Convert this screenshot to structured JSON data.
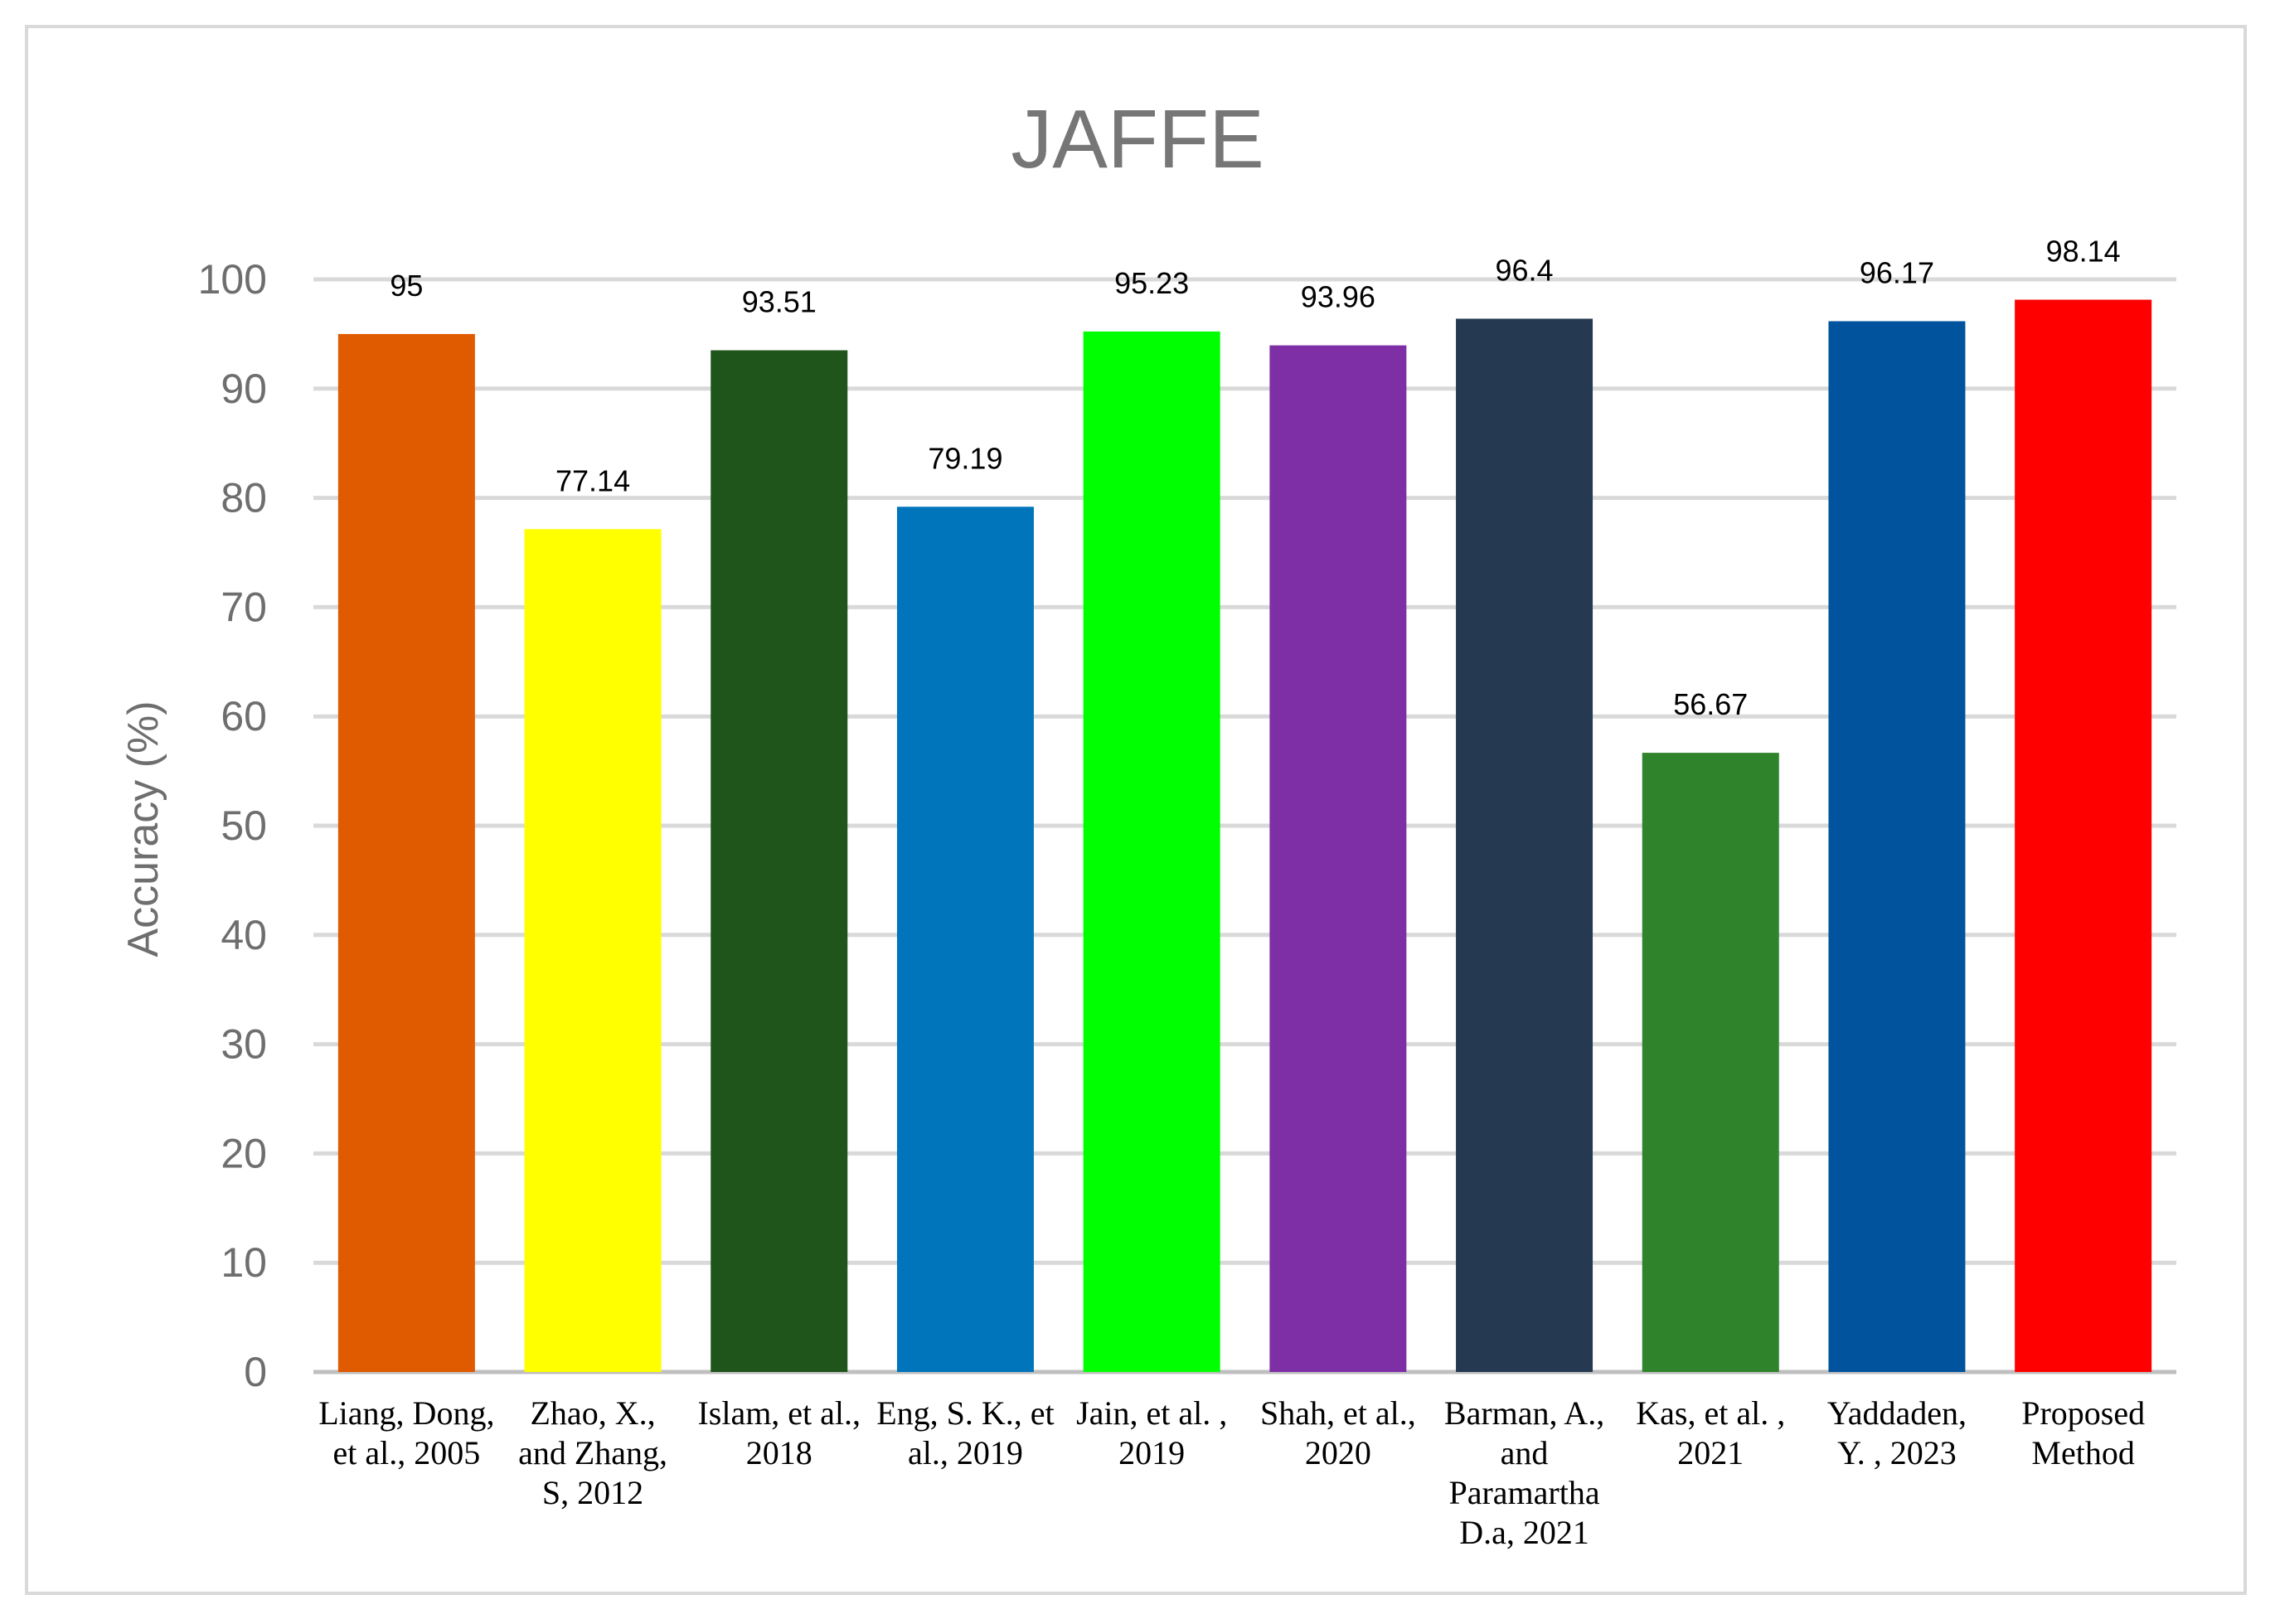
{
  "chart_data": {
    "type": "bar",
    "title": "JAFFE",
    "xlabel": "",
    "ylabel": "Accuracy (%)",
    "ylim": [
      0,
      100
    ],
    "yticks": [
      0,
      10,
      20,
      30,
      40,
      50,
      60,
      70,
      80,
      90,
      100
    ],
    "grid": true,
    "legend": "none",
    "categories": [
      [
        "Liang, Dong,",
        "et al., 2005"
      ],
      [
        "Zhao, X.,",
        "and Zhang,",
        "S, 2012"
      ],
      [
        "Islam, et al.,",
        "2018"
      ],
      [
        "Eng, S. K., et",
        "al., 2019"
      ],
      [
        "Jain, et al. ,",
        "2019"
      ],
      [
        "Shah, et al.,",
        "2020"
      ],
      [
        "Barman, A.,",
        "and",
        "Paramartha",
        "D.a, 2021"
      ],
      [
        "Kas, et al. ,",
        "2021"
      ],
      [
        "Yaddaden,",
        "Y. , 2023"
      ],
      [
        "Proposed",
        "Method"
      ]
    ],
    "values": [
      95,
      77.14,
      93.51,
      79.19,
      95.23,
      93.96,
      96.4,
      56.67,
      96.17,
      98.14
    ],
    "value_labels": [
      "95",
      "77.14",
      "93.51",
      "79.19",
      "95.23",
      "93.96",
      "96.4",
      "56.67",
      "96.17",
      "98.14"
    ],
    "colors": [
      "#e05a00",
      "#ffff00",
      "#1f541a",
      "#0075bc",
      "#00ff00",
      "#7f2fa6",
      "#253a50",
      "#2f842b",
      "#00539c",
      "#ff0000"
    ]
  }
}
